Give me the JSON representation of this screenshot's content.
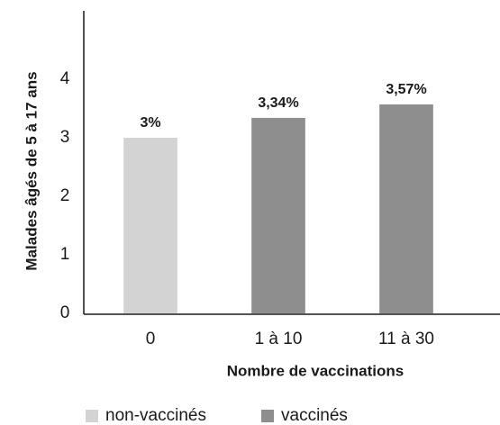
{
  "chart_data": {
    "type": "bar",
    "y_label": "Malades âgés de 5 à 17 ans",
    "x_label": "Nombre de vaccinations",
    "categories": [
      "0",
      "1 à 10",
      "11 à 30"
    ],
    "series": [
      {
        "name": "non-vaccinés",
        "color": "#d3d3d3",
        "values": [
          3,
          null,
          null
        ],
        "value_labels": [
          "3%",
          null,
          null
        ]
      },
      {
        "name": "vaccinés",
        "color": "#8e8e8e",
        "values": [
          null,
          3.34,
          3.57
        ],
        "value_labels": [
          null,
          "3,34%",
          "3,57%"
        ]
      }
    ],
    "ylim": [
      0,
      5.2
    ],
    "yticks": [
      0,
      1,
      2,
      3,
      4
    ]
  }
}
